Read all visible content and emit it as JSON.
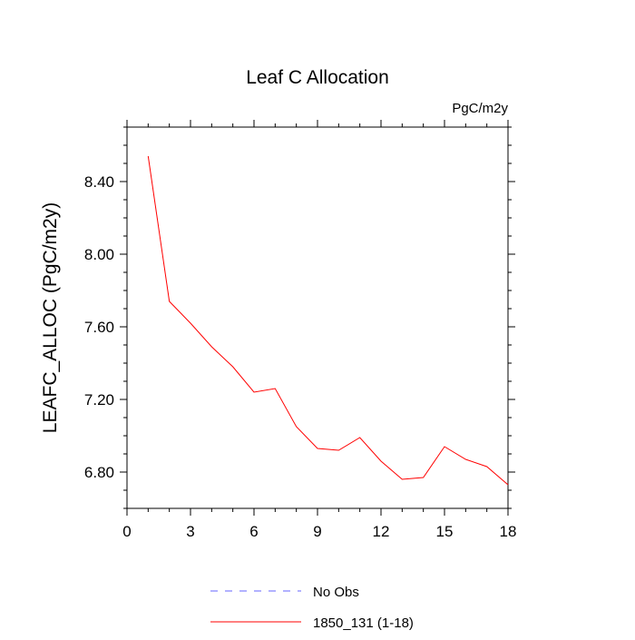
{
  "chart_data": {
    "type": "line",
    "title": "Leaf C Allocation",
    "units_label": "PgC/m2y",
    "xlabel": "",
    "ylabel": "LEAFC_ALLOC  (PgC/m2y)",
    "xlim": [
      0,
      18
    ],
    "ylim": [
      6.6,
      8.7
    ],
    "x_ticks": [
      0,
      3,
      6,
      9,
      12,
      15,
      18
    ],
    "x_tick_labels": [
      "0",
      "3",
      "6",
      "9",
      "12",
      "15",
      "18"
    ],
    "y_ticks": [
      6.8,
      7.2,
      7.6,
      8.0,
      8.4
    ],
    "y_tick_labels": [
      "6.80",
      "7.20",
      "7.60",
      "8.00",
      "8.40"
    ],
    "grid": false,
    "series": [
      {
        "name": "No Obs",
        "style": "dashed",
        "color": "#6666ff",
        "x": [],
        "values": []
      },
      {
        "name": "1850_131 (1-18)",
        "style": "solid",
        "color": "#ff0000",
        "x": [
          1,
          2,
          3,
          4,
          5,
          6,
          7,
          8,
          9,
          10,
          11,
          12,
          13,
          14,
          15,
          16,
          17,
          18
        ],
        "values": [
          8.54,
          7.74,
          7.62,
          7.49,
          7.38,
          7.24,
          7.26,
          7.05,
          6.93,
          6.92,
          6.99,
          6.86,
          6.76,
          6.77,
          6.94,
          6.87,
          6.83,
          6.73
        ]
      }
    ],
    "legend_position": "bottom-center"
  }
}
